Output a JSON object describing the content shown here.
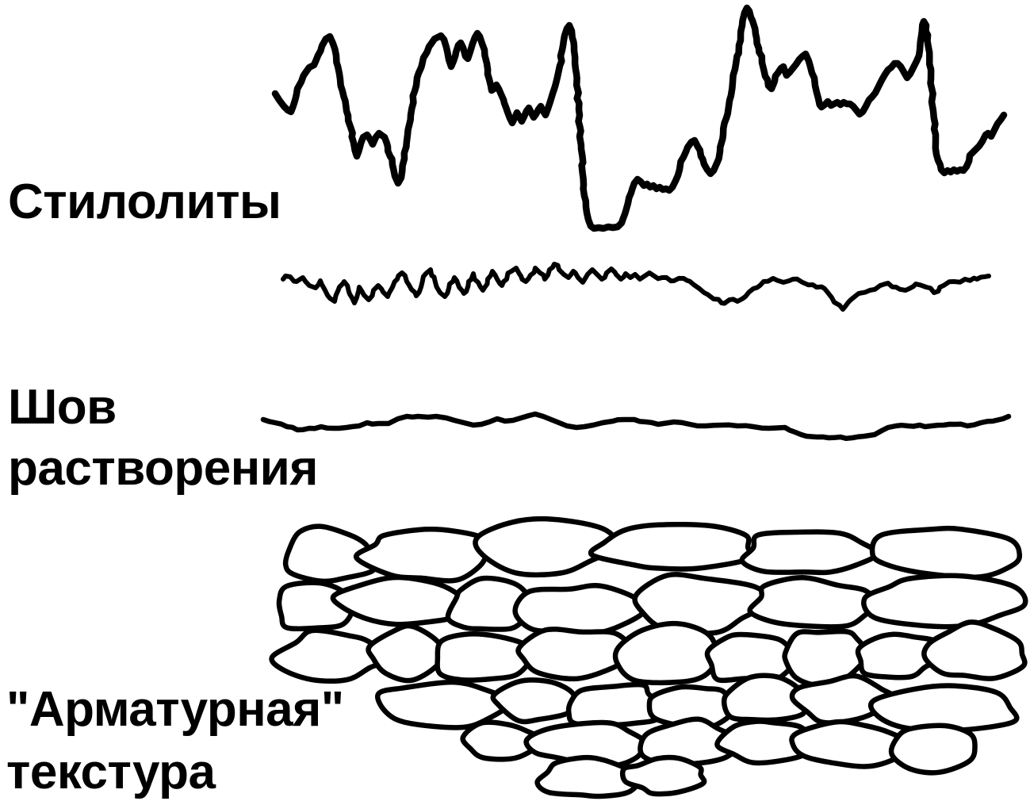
{
  "figure": {
    "background_color": "#ffffff",
    "ink_color": "#000000",
    "items": [
      {
        "id": "stylolites",
        "label": "Стилолиты",
        "label_lines": [
          "Стилолиты"
        ],
        "graphics": [
          "stylolite-curve-high-amplitude",
          "stylolite-curve-low-amplitude"
        ]
      },
      {
        "id": "solution-seam",
        "label": "Шов растворения",
        "label_lines": [
          "Шов",
          "растворения"
        ],
        "graphics": [
          "solution-seam-line"
        ]
      },
      {
        "id": "fitted-texture",
        "label": "\"Арматурная\" текстура",
        "label_lines": [
          "\"Арматурная\"",
          "текстура"
        ],
        "graphics": [
          "fitted-fabric-texture"
        ]
      }
    ]
  }
}
